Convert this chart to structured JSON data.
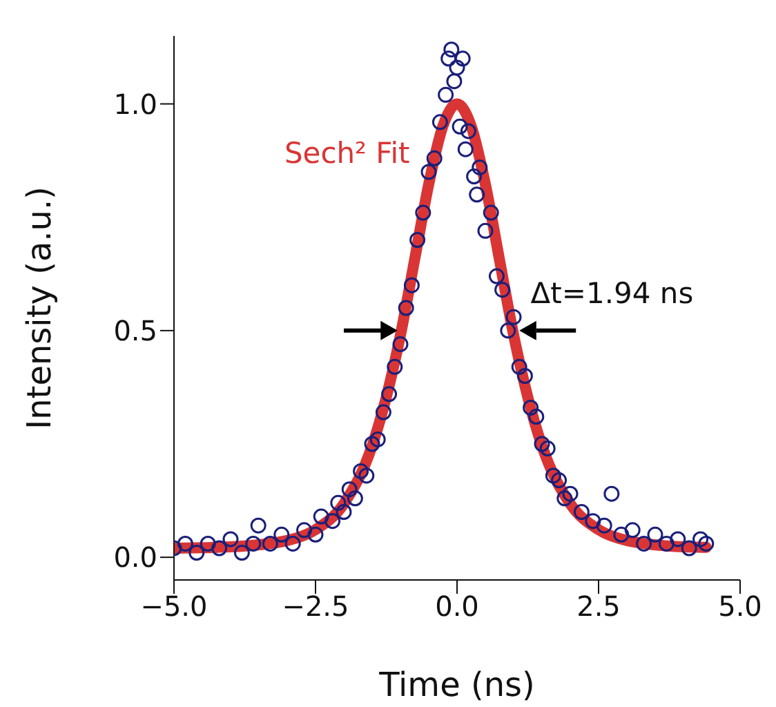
{
  "chart_data": {
    "type": "scatter",
    "xlabel": "Time (ns)",
    "ylabel": "Intensity (a.u.)",
    "xlim": [
      -5,
      5
    ],
    "xticks": [
      {
        "value": -5,
        "label": "−5.0"
      },
      {
        "value": -2.5,
        "label": "−2.5"
      },
      {
        "value": 0,
        "label": "0.0"
      },
      {
        "value": 2.5,
        "label": "2.5"
      },
      {
        "value": 5,
        "label": "5.0"
      }
    ],
    "ylim": [
      -0.05,
      1.15
    ],
    "yticks": [
      {
        "value": 0,
        "label": "0.0"
      },
      {
        "value": 0.5,
        "label": "0.5"
      },
      {
        "value": 1,
        "label": "1.0"
      }
    ],
    "legend": false,
    "annotations": [
      "Δt=1.94 ns"
    ],
    "series": [
      {
        "marker": "circle",
        "color": "#1a1f7a",
        "x": [
          -5.0,
          -4.8,
          -4.6,
          -4.4,
          -4.2,
          -4.0,
          -3.8,
          -3.6,
          -3.51,
          -3.3,
          -3.1,
          -2.9,
          -2.7,
          -2.5,
          -2.4,
          -2.2,
          -2.1,
          -2.0,
          -1.9,
          -1.8,
          -1.7,
          -1.6,
          -1.5,
          -1.4,
          -1.3,
          -1.2,
          -1.1,
          -1.0,
          -0.9,
          -0.8,
          -0.7,
          -0.6,
          -0.5,
          -0.4,
          -0.3,
          -0.2,
          -0.15,
          -0.1,
          -0.05,
          0.0,
          0.05,
          0.1,
          0.15,
          0.2,
          0.3,
          0.35,
          0.4,
          0.5,
          0.6,
          0.7,
          0.8,
          0.9,
          1.0,
          1.1,
          1.2,
          1.3,
          1.4,
          1.5,
          1.6,
          1.7,
          1.8,
          1.9,
          2.0,
          2.2,
          2.4,
          2.6,
          2.73,
          2.9,
          3.1,
          3.3,
          3.5,
          3.7,
          3.9,
          4.1,
          4.3,
          4.4
        ],
        "values": [
          0.02,
          0.03,
          0.01,
          0.03,
          0.02,
          0.04,
          0.01,
          0.03,
          0.07,
          0.03,
          0.05,
          0.03,
          0.06,
          0.05,
          0.09,
          0.08,
          0.12,
          0.1,
          0.15,
          0.13,
          0.19,
          0.18,
          0.25,
          0.26,
          0.32,
          0.36,
          0.42,
          0.47,
          0.55,
          0.6,
          0.7,
          0.76,
          0.85,
          0.88,
          0.96,
          1.02,
          1.1,
          1.12,
          1.05,
          1.08,
          0.95,
          1.1,
          0.9,
          0.94,
          0.84,
          0.8,
          0.86,
          0.72,
          0.76,
          0.62,
          0.59,
          0.5,
          0.53,
          0.42,
          0.4,
          0.33,
          0.31,
          0.25,
          0.24,
          0.18,
          0.17,
          0.13,
          0.14,
          0.1,
          0.08,
          0.07,
          0.14,
          0.05,
          0.06,
          0.03,
          0.05,
          0.03,
          0.04,
          0.02,
          0.04,
          0.03
        ]
      },
      {
        "type": "line",
        "marker": "none",
        "name": "Sech² Fit",
        "color": "#d93535",
        "x": [
          -5,
          -4,
          -3,
          -2.5,
          -2,
          -1.5,
          -1.25,
          -1,
          -0.75,
          -0.5,
          -0.25,
          0,
          0.25,
          0.5,
          0.75,
          1,
          1.25,
          1.5,
          2,
          2.5,
          3,
          4,
          4.4
        ],
        "values": [
          0.02,
          0.023,
          0.037,
          0.061,
          0.118,
          0.246,
          0.353,
          0.49,
          0.656,
          0.823,
          0.951,
          1.0,
          0.951,
          0.823,
          0.656,
          0.49,
          0.353,
          0.246,
          0.118,
          0.061,
          0.037,
          0.023,
          0.022
        ]
      }
    ]
  }
}
